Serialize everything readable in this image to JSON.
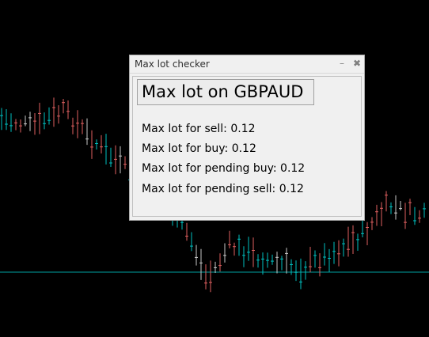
{
  "window": {
    "title": "Max lot checker",
    "minimize_icon": "minimize-icon",
    "close_icon": "close-icon"
  },
  "header": {
    "label": "Max lot on GBPAUD"
  },
  "rows": [
    {
      "label": "Max lot for sell:",
      "value": "0.12"
    },
    {
      "label": "Max lot for buy:",
      "value": "0.12"
    },
    {
      "label": "Max lot for pending buy:",
      "value": "0.12"
    },
    {
      "label": "Max lot for pending sell:",
      "value": "0.12"
    }
  ],
  "colors": {
    "background": "#000000",
    "bull": "#00c0c0",
    "bear": "#e06060",
    "neutral": "#c8c8c8",
    "price_line": "#00a0a0"
  }
}
